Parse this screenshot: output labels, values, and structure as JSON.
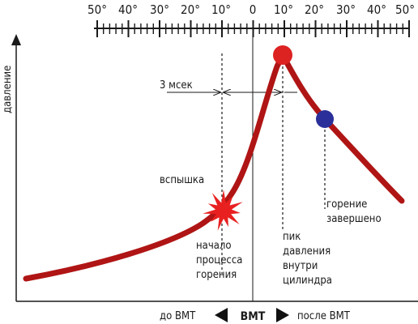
{
  "scale": {
    "labels": [
      "50°",
      "40°",
      "30°",
      "20°",
      "10°",
      "0",
      "10°",
      "20°",
      "30°",
      "40°",
      "50°"
    ]
  },
  "axes": {
    "y_label": "давление"
  },
  "annotations": {
    "ms": "3 мсек",
    "flash": "вспышка",
    "start": [
      "начало",
      "процесса",
      "горения"
    ],
    "peak": [
      "пик",
      "давления",
      "внутри",
      "цилиндра"
    ],
    "end": [
      "горение",
      "завершено"
    ]
  },
  "bottom": {
    "before": "до ВМТ",
    "center": "ВМТ",
    "after": "после ВМТ"
  },
  "colors": {
    "curve": "#b01515",
    "peak_marker": "#dd2222",
    "end_marker": "#2a2f9a",
    "flash": "#e82020",
    "ink": "#1a1a1a"
  },
  "icons": {
    "left": "triangle-left-icon",
    "right": "triangle-right-icon",
    "flash": "spark-burst-icon"
  }
}
